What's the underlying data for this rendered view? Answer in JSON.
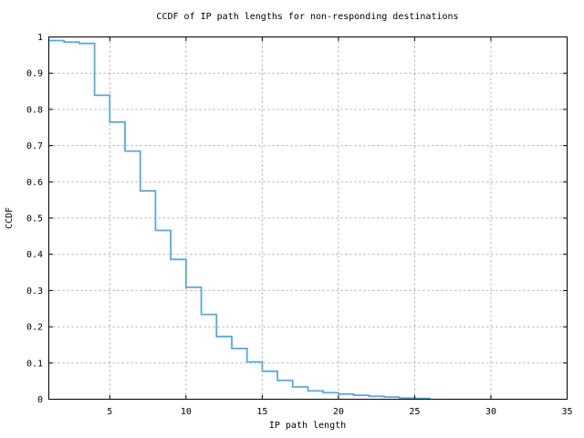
{
  "page": {
    "background": "#ffffff"
  },
  "chart_data": {
    "type": "line",
    "subtype": "step-post-ccdf",
    "title": "CCDF of IP path lengths for non-responding destinations",
    "xlabel": "IP path length",
    "ylabel": "CCDF",
    "xlim": [
      1,
      35
    ],
    "ylim": [
      0,
      1
    ],
    "grid": true,
    "legend": "none",
    "line_color": "#56aadc",
    "grid_color": "#a8a8a8",
    "axis_color": "#000000",
    "xticks": [
      {
        "value": 5,
        "label": "5"
      },
      {
        "value": 10,
        "label": "10"
      },
      {
        "value": 15,
        "label": "15"
      },
      {
        "value": 20,
        "label": "20"
      },
      {
        "value": 25,
        "label": "25"
      },
      {
        "value": 30,
        "label": "30"
      },
      {
        "value": 35,
        "label": "35"
      }
    ],
    "yticks": [
      {
        "value": 0.0,
        "label": "0"
      },
      {
        "value": 0.1,
        "label": "0.1"
      },
      {
        "value": 0.2,
        "label": "0.2"
      },
      {
        "value": 0.3,
        "label": "0.3"
      },
      {
        "value": 0.4,
        "label": "0.4"
      },
      {
        "value": 0.5,
        "label": "0.5"
      },
      {
        "value": 0.6,
        "label": "0.6"
      },
      {
        "value": 0.7,
        "label": "0.7"
      },
      {
        "value": 0.8,
        "label": "0.8"
      },
      {
        "value": 0.9,
        "label": "0.9"
      },
      {
        "value": 1.0,
        "label": "1"
      }
    ],
    "points": [
      [
        1,
        0.99
      ],
      [
        2,
        0.986
      ],
      [
        3,
        0.982
      ],
      [
        4,
        0.839
      ],
      [
        5,
        0.765
      ],
      [
        6,
        0.685
      ],
      [
        7,
        0.575
      ],
      [
        8,
        0.466
      ],
      [
        9,
        0.386
      ],
      [
        10,
        0.309
      ],
      [
        11,
        0.234
      ],
      [
        12,
        0.173
      ],
      [
        13,
        0.14
      ],
      [
        14,
        0.103
      ],
      [
        15,
        0.077
      ],
      [
        16,
        0.052
      ],
      [
        17,
        0.034
      ],
      [
        18,
        0.023
      ],
      [
        19,
        0.018
      ],
      [
        20,
        0.014
      ],
      [
        21,
        0.011
      ],
      [
        22,
        0.008
      ],
      [
        23,
        0.006
      ],
      [
        24,
        0.003
      ],
      [
        25,
        0.002
      ],
      [
        26,
        0.0
      ]
    ]
  }
}
